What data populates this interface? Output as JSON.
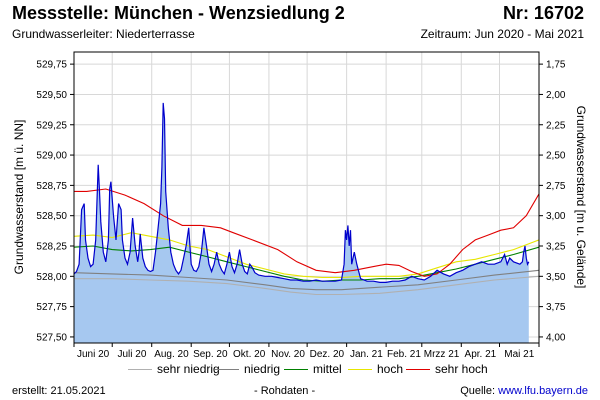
{
  "header": {
    "title": "Messstelle: München - Wenzsiedlung 2",
    "nr": "Nr: 16702",
    "aquifer": "Grundwasserleiter:   Niederterrasse",
    "period": "Zeitraum: Jun 2020 - Mai 2021"
  },
  "footer": {
    "created": "erstellt:  21.05.2021",
    "raw": "- Rohdaten -",
    "source_label": "Quelle: ",
    "source_link": "www.lfu.bayern.de"
  },
  "legend": [
    {
      "name": "sehr niedrig",
      "color": "#b0b0b0"
    },
    {
      "name": "niedrig",
      "color": "#808080"
    },
    {
      "name": "mittel",
      "color": "#008000"
    },
    {
      "name": "hoch",
      "color": "#e6e600"
    },
    {
      "name": "sehr hoch",
      "color": "#e00000"
    }
  ],
  "chart_data": {
    "type": "area",
    "x_ticks": [
      "Juni 20",
      "Juli 20",
      "Aug. 20",
      "Sep. 20",
      "Okt. 20",
      "Nov. 20",
      "Dez. 20",
      "Jan. 21",
      "Feb. 21",
      "Mrzz 21",
      "Apr. 21",
      "Mai 21"
    ],
    "ylabel_left": "Grundwasserstand [m ü. NN]",
    "ylabel_right": "Grundwasserstand [m u. Gelände]",
    "yticks_left": [
      "529,75",
      "529,50",
      "529,25",
      "529,00",
      "528,75",
      "528,50",
      "528,25",
      "528,00",
      "527,75",
      "527,50"
    ],
    "yticks_right": [
      "1,75",
      "2,00",
      "2,25",
      "2,50",
      "2,75",
      "3,00",
      "3,25",
      "3,50",
      "3,75",
      "4,00"
    ],
    "ylim_left": [
      527.45,
      529.85
    ],
    "xlim_days": [
      0,
      365
    ],
    "grid": true,
    "colors": {
      "fill": "#a6c8f0",
      "line": "#0000cc"
    },
    "series": [
      {
        "name": "sehr niedrig",
        "color": "#b0b0b0",
        "x": [
          0,
          30,
          60,
          90,
          120,
          150,
          170,
          190,
          210,
          240,
          270,
          300,
          330,
          365
        ],
        "y": [
          527.98,
          527.98,
          527.97,
          527.96,
          527.94,
          527.9,
          527.87,
          527.85,
          527.85,
          527.86,
          527.89,
          527.93,
          527.97,
          528.0
        ]
      },
      {
        "name": "niedrig",
        "color": "#808080",
        "x": [
          0,
          30,
          60,
          90,
          120,
          150,
          170,
          190,
          210,
          240,
          270,
          300,
          330,
          365
        ],
        "y": [
          528.03,
          528.02,
          528.01,
          527.99,
          527.97,
          527.93,
          527.9,
          527.89,
          527.89,
          527.91,
          527.93,
          527.97,
          528.01,
          528.05
        ]
      },
      {
        "name": "mittel",
        "color": "#008000",
        "x": [
          0,
          15,
          30,
          45,
          60,
          75,
          90,
          105,
          120,
          135,
          150,
          165,
          180,
          195,
          210,
          225,
          240,
          255,
          270,
          285,
          300,
          315,
          330,
          345,
          365
        ],
        "y": [
          528.24,
          528.25,
          528.22,
          528.21,
          528.22,
          528.24,
          528.2,
          528.16,
          528.12,
          528.08,
          528.04,
          528.0,
          527.97,
          527.96,
          527.97,
          527.97,
          527.98,
          527.98,
          528.0,
          528.03,
          528.06,
          528.1,
          528.14,
          528.18,
          528.24
        ]
      },
      {
        "name": "hoch",
        "color": "#e6e600",
        "x": [
          0,
          15,
          30,
          45,
          60,
          75,
          90,
          105,
          120,
          135,
          150,
          165,
          180,
          195,
          210,
          225,
          240,
          255,
          270,
          285,
          300,
          315,
          330,
          345,
          365
        ],
        "y": [
          528.33,
          528.34,
          528.32,
          528.36,
          528.33,
          528.3,
          528.25,
          528.22,
          528.16,
          528.1,
          528.06,
          528.02,
          528.0,
          527.99,
          527.99,
          528.0,
          528.0,
          528.0,
          528.02,
          528.07,
          528.12,
          528.14,
          528.18,
          528.22,
          528.3
        ]
      },
      {
        "name": "sehr hoch",
        "color": "#e00000",
        "x": [
          0,
          10,
          25,
          40,
          55,
          70,
          85,
          100,
          115,
          125,
          140,
          160,
          175,
          190,
          205,
          220,
          235,
          245,
          255,
          265,
          275,
          285,
          295,
          305,
          315,
          325,
          335,
          345,
          355,
          365
        ],
        "y": [
          528.7,
          528.7,
          528.72,
          528.67,
          528.6,
          528.5,
          528.42,
          528.42,
          528.4,
          528.36,
          528.3,
          528.22,
          528.12,
          528.05,
          528.03,
          528.05,
          528.08,
          528.1,
          528.09,
          528.04,
          528.0,
          528.02,
          528.1,
          528.22,
          528.3,
          528.34,
          528.38,
          528.4,
          528.5,
          528.68
        ]
      },
      {
        "name": "Grundwasserstand",
        "color": "#0000cc",
        "x": [
          0,
          2,
          4,
          6,
          8,
          9,
          11,
          13,
          15,
          17,
          18,
          19,
          20,
          21,
          23,
          25,
          27,
          28,
          29,
          31,
          33,
          35,
          37,
          38,
          40,
          42,
          44,
          46,
          48,
          50,
          51,
          52,
          54,
          56,
          58,
          60,
          62,
          64,
          66,
          68,
          69,
          70,
          71,
          72,
          74,
          76,
          78,
          80,
          82,
          84,
          86,
          88,
          90,
          92,
          94,
          96,
          98,
          100,
          102,
          104,
          106,
          108,
          110,
          112,
          114,
          116,
          118,
          120,
          122,
          124,
          126,
          128,
          130,
          132,
          134,
          136,
          138,
          140,
          142,
          145,
          150,
          155,
          160,
          165,
          170,
          175,
          180,
          185,
          190,
          195,
          200,
          205,
          210,
          212,
          213,
          214,
          215,
          216,
          217,
          218,
          220,
          222,
          225,
          230,
          235,
          240,
          245,
          250,
          255,
          260,
          265,
          270,
          275,
          280,
          285,
          290,
          295,
          300,
          305,
          310,
          315,
          320,
          325,
          330,
          335,
          338,
          340,
          342,
          345,
          350,
          352,
          353,
          354,
          355,
          356,
          357
        ],
        "y": [
          528.02,
          528.04,
          528.1,
          528.55,
          528.6,
          528.3,
          528.15,
          528.08,
          528.1,
          528.3,
          528.6,
          528.92,
          528.7,
          528.45,
          528.2,
          528.12,
          528.3,
          528.72,
          528.78,
          528.5,
          528.3,
          528.6,
          528.55,
          528.3,
          528.15,
          528.1,
          528.2,
          528.48,
          528.25,
          528.12,
          528.2,
          528.35,
          528.15,
          528.08,
          528.05,
          528.04,
          528.05,
          528.2,
          528.4,
          528.6,
          528.9,
          529.43,
          529.3,
          528.7,
          528.4,
          528.2,
          528.1,
          528.05,
          528.02,
          528.05,
          528.15,
          528.25,
          528.4,
          528.1,
          528.05,
          528.04,
          528.08,
          528.2,
          528.4,
          528.25,
          528.1,
          528.04,
          528.1,
          528.2,
          528.1,
          528.05,
          528.02,
          528.1,
          528.2,
          528.08,
          528.03,
          528.1,
          528.22,
          528.1,
          528.04,
          528.02,
          528.1,
          528.07,
          528.03,
          528.01,
          528.0,
          528.0,
          527.99,
          527.98,
          527.97,
          527.97,
          527.96,
          527.96,
          527.97,
          527.96,
          527.96,
          527.96,
          527.97,
          528.1,
          528.38,
          528.3,
          528.42,
          528.25,
          528.38,
          528.1,
          528.2,
          528.1,
          527.98,
          527.96,
          527.96,
          527.95,
          527.95,
          527.96,
          527.96,
          527.97,
          528.0,
          527.98,
          527.97,
          528.0,
          528.05,
          528.02,
          528.0,
          528.03,
          528.05,
          528.08,
          528.1,
          528.12,
          528.1,
          528.1,
          528.12,
          528.18,
          528.1,
          528.15,
          528.12,
          528.1,
          528.12,
          528.2,
          528.25,
          528.15,
          528.1,
          528.12
        ]
      }
    ]
  }
}
